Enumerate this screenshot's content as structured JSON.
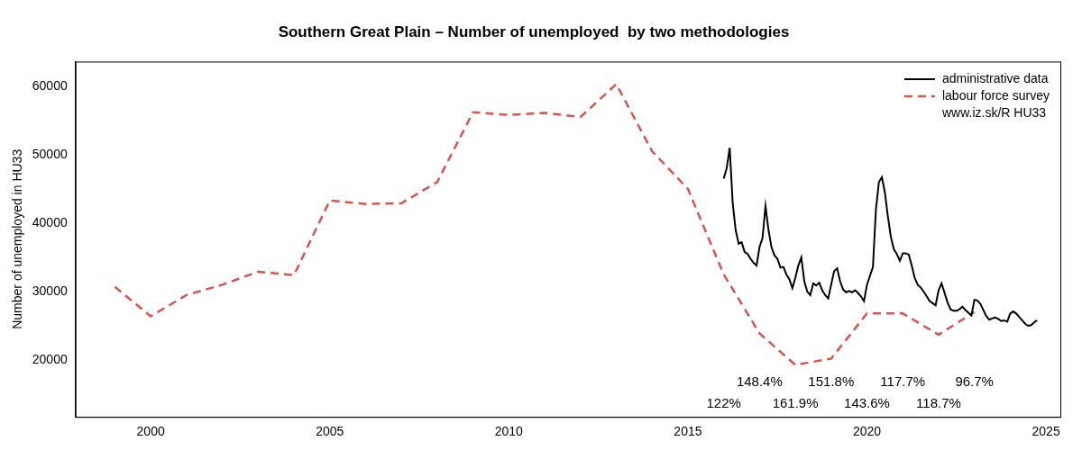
{
  "chart_data": {
    "type": "line",
    "title": "Southern Great Plain – Number of unemployed  by two methodologies",
    "ylabel": "Number of unemployed in HU33",
    "xlim": [
      1997.9,
      2025.4
    ],
    "xticks": [
      2000,
      2005,
      2010,
      2015,
      2020,
      2025
    ],
    "ylim": [
      11700,
      63600
    ],
    "yticks": [
      20000,
      30000,
      40000,
      50000,
      60000
    ],
    "grid": false,
    "legend": "top-right",
    "source": "www.iz.sk/R HU33",
    "series": [
      {
        "name": "administrative data",
        "color": "#000000",
        "line_style": "solid",
        "x": [
          2016,
          2016.083,
          2016.167,
          2016.25,
          2016.333,
          2016.417,
          2016.5,
          2016.583,
          2016.667,
          2016.75,
          2016.833,
          2016.917,
          2017,
          2017.083,
          2017.167,
          2017.25,
          2017.333,
          2017.417,
          2017.5,
          2017.583,
          2017.667,
          2017.75,
          2017.833,
          2017.917,
          2018,
          2018.083,
          2018.167,
          2018.25,
          2018.333,
          2018.417,
          2018.5,
          2018.583,
          2018.667,
          2018.75,
          2018.833,
          2018.917,
          2019,
          2019.083,
          2019.167,
          2019.25,
          2019.333,
          2019.417,
          2019.5,
          2019.583,
          2019.667,
          2019.75,
          2019.833,
          2019.917,
          2020,
          2020.083,
          2020.167,
          2020.25,
          2020.333,
          2020.417,
          2020.5,
          2020.583,
          2020.667,
          2020.75,
          2020.833,
          2020.917,
          2021,
          2021.083,
          2021.167,
          2021.25,
          2021.333,
          2021.417,
          2021.5,
          2021.583,
          2021.667,
          2021.75,
          2021.833,
          2021.917,
          2022,
          2022.083,
          2022.167,
          2022.25,
          2022.333,
          2022.417,
          2022.5,
          2022.583,
          2022.667,
          2022.75,
          2022.833,
          2022.917,
          2023,
          2023.083,
          2023.167,
          2023.25,
          2023.333,
          2023.417,
          2023.5,
          2023.583,
          2023.667,
          2023.75,
          2023.833,
          2023.917,
          2024,
          2024.083,
          2024.167,
          2024.25,
          2024.333,
          2024.417,
          2024.5,
          2024.583,
          2024.667,
          2024.75
        ],
        "values": [
          46500,
          48000,
          51000,
          43000,
          39000,
          37000,
          37200,
          35800,
          35500,
          34800,
          34200,
          33800,
          36500,
          37800,
          42500,
          39000,
          36500,
          35300,
          34800,
          33500,
          33600,
          32500,
          31800,
          30500,
          32000,
          33800,
          35000,
          31500,
          30000,
          29500,
          31200,
          30900,
          31300,
          30200,
          29500,
          29000,
          31000,
          33000,
          33400,
          31500,
          30300,
          29900,
          30100,
          29900,
          30200,
          29800,
          29300,
          28600,
          31000,
          32300,
          33600,
          42000,
          46000,
          46700,
          44500,
          41000,
          38000,
          36200,
          35500,
          34500,
          35600,
          35600,
          35400,
          33800,
          32000,
          31000,
          30600,
          30000,
          29300,
          28600,
          28300,
          28000,
          30200,
          31200,
          29800,
          28400,
          27400,
          27200,
          27200,
          27400,
          27800,
          27300,
          26900,
          26500,
          28800,
          28700,
          28200,
          27300,
          26400,
          25900,
          26100,
          26200,
          26000,
          25700,
          25800,
          25600,
          26800,
          27100,
          26800,
          26300,
          25800,
          25300,
          25000,
          25100,
          25500,
          25800
        ]
      },
      {
        "name": "labour force survey",
        "color": "#d9534f",
        "line_style": "dashed",
        "x": [
          1999,
          2000,
          2001,
          2002,
          2003,
          2004,
          2005,
          2006,
          2007,
          2008,
          2009,
          2010,
          2011,
          2012,
          2013,
          2014,
          2015,
          2016,
          2017,
          2018,
          2019,
          2020,
          2021,
          2022,
          2023
        ],
        "values": [
          30700,
          26400,
          29500,
          31000,
          32900,
          32400,
          43300,
          42800,
          42900,
          46000,
          56200,
          55800,
          56100,
          55500,
          60300,
          50500,
          45000,
          32500,
          23900,
          19300,
          20200,
          26800,
          26800,
          23700,
          27000
        ]
      }
    ],
    "annotations": [
      {
        "text": "148.4%",
        "x": 2017,
        "y": 16750
      },
      {
        "text": "151.8%",
        "x": 2019,
        "y": 16750
      },
      {
        "text": "117.7%",
        "x": 2021,
        "y": 16750
      },
      {
        "text": "96.7%",
        "x": 2023,
        "y": 16750
      },
      {
        "text": "122%",
        "x": 2016,
        "y": 13640
      },
      {
        "text": "161.9%",
        "x": 2018,
        "y": 13640
      },
      {
        "text": "143.6%",
        "x": 2020,
        "y": 13640
      },
      {
        "text": "118.7%",
        "x": 2022,
        "y": 13640
      }
    ]
  }
}
